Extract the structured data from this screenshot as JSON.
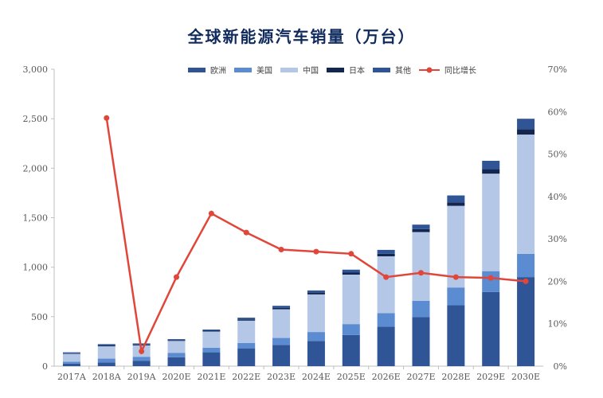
{
  "chart_data": {
    "type": "bar",
    "title": "全球新能源汽车销量（万台）",
    "categories": [
      "2017A",
      "2018A",
      "2019A",
      "2020E",
      "2021E",
      "2022E",
      "2023E",
      "2024E",
      "2025E",
      "2026E",
      "2027E",
      "2028E",
      "2029E",
      "2030E"
    ],
    "stacked": true,
    "series": [
      {
        "name": "欧洲",
        "type": "bar",
        "axis": "left",
        "color": "#2f5597",
        "values": [
          25,
          38,
          55,
          90,
          140,
          180,
          215,
          255,
          315,
          400,
          495,
          615,
          750,
          900
        ]
      },
      {
        "name": "美国",
        "type": "bar",
        "axis": "left",
        "color": "#5b8bd0",
        "values": [
          20,
          38,
          40,
          45,
          45,
          55,
          70,
          90,
          110,
          135,
          165,
          180,
          210,
          235
        ]
      },
      {
        "name": "中国",
        "type": "bar",
        "axis": "left",
        "color": "#b4c7e7",
        "values": [
          80,
          125,
          115,
          120,
          165,
          225,
          290,
          380,
          500,
          575,
          695,
          825,
          985,
          1205
        ]
      },
      {
        "name": "日本",
        "type": "bar",
        "axis": "left",
        "color": "#12264f",
        "values": [
          5,
          10,
          8,
          8,
          8,
          12,
          15,
          18,
          20,
          25,
          30,
          35,
          45,
          55
        ]
      },
      {
        "name": "其他",
        "type": "bar",
        "axis": "left",
        "color": "#2f5597",
        "values": [
          10,
          12,
          12,
          10,
          12,
          18,
          20,
          22,
          30,
          40,
          45,
          70,
          85,
          105
        ]
      },
      {
        "name": "同比增长",
        "type": "line",
        "axis": "right",
        "color": "#e0463a",
        "values": [
          null,
          58.5,
          3.5,
          21,
          36,
          31.5,
          27.5,
          27,
          26.5,
          21,
          22,
          21,
          20.8,
          20
        ]
      }
    ],
    "y_left": {
      "range": [
        0,
        3000
      ],
      "ticks": [
        "0",
        "500",
        "1,000",
        "1,500",
        "2,000",
        "2,500",
        "3,000"
      ],
      "tick_values": [
        0,
        500,
        1000,
        1500,
        2000,
        2500,
        3000
      ]
    },
    "y_right": {
      "range": [
        0,
        70
      ],
      "ticks": [
        "0%",
        "10%",
        "20%",
        "30%",
        "40%",
        "50%",
        "60%",
        "70%"
      ],
      "tick_values": [
        0,
        10,
        20,
        30,
        40,
        50,
        60,
        70
      ]
    },
    "grid": false,
    "legend": "top"
  }
}
